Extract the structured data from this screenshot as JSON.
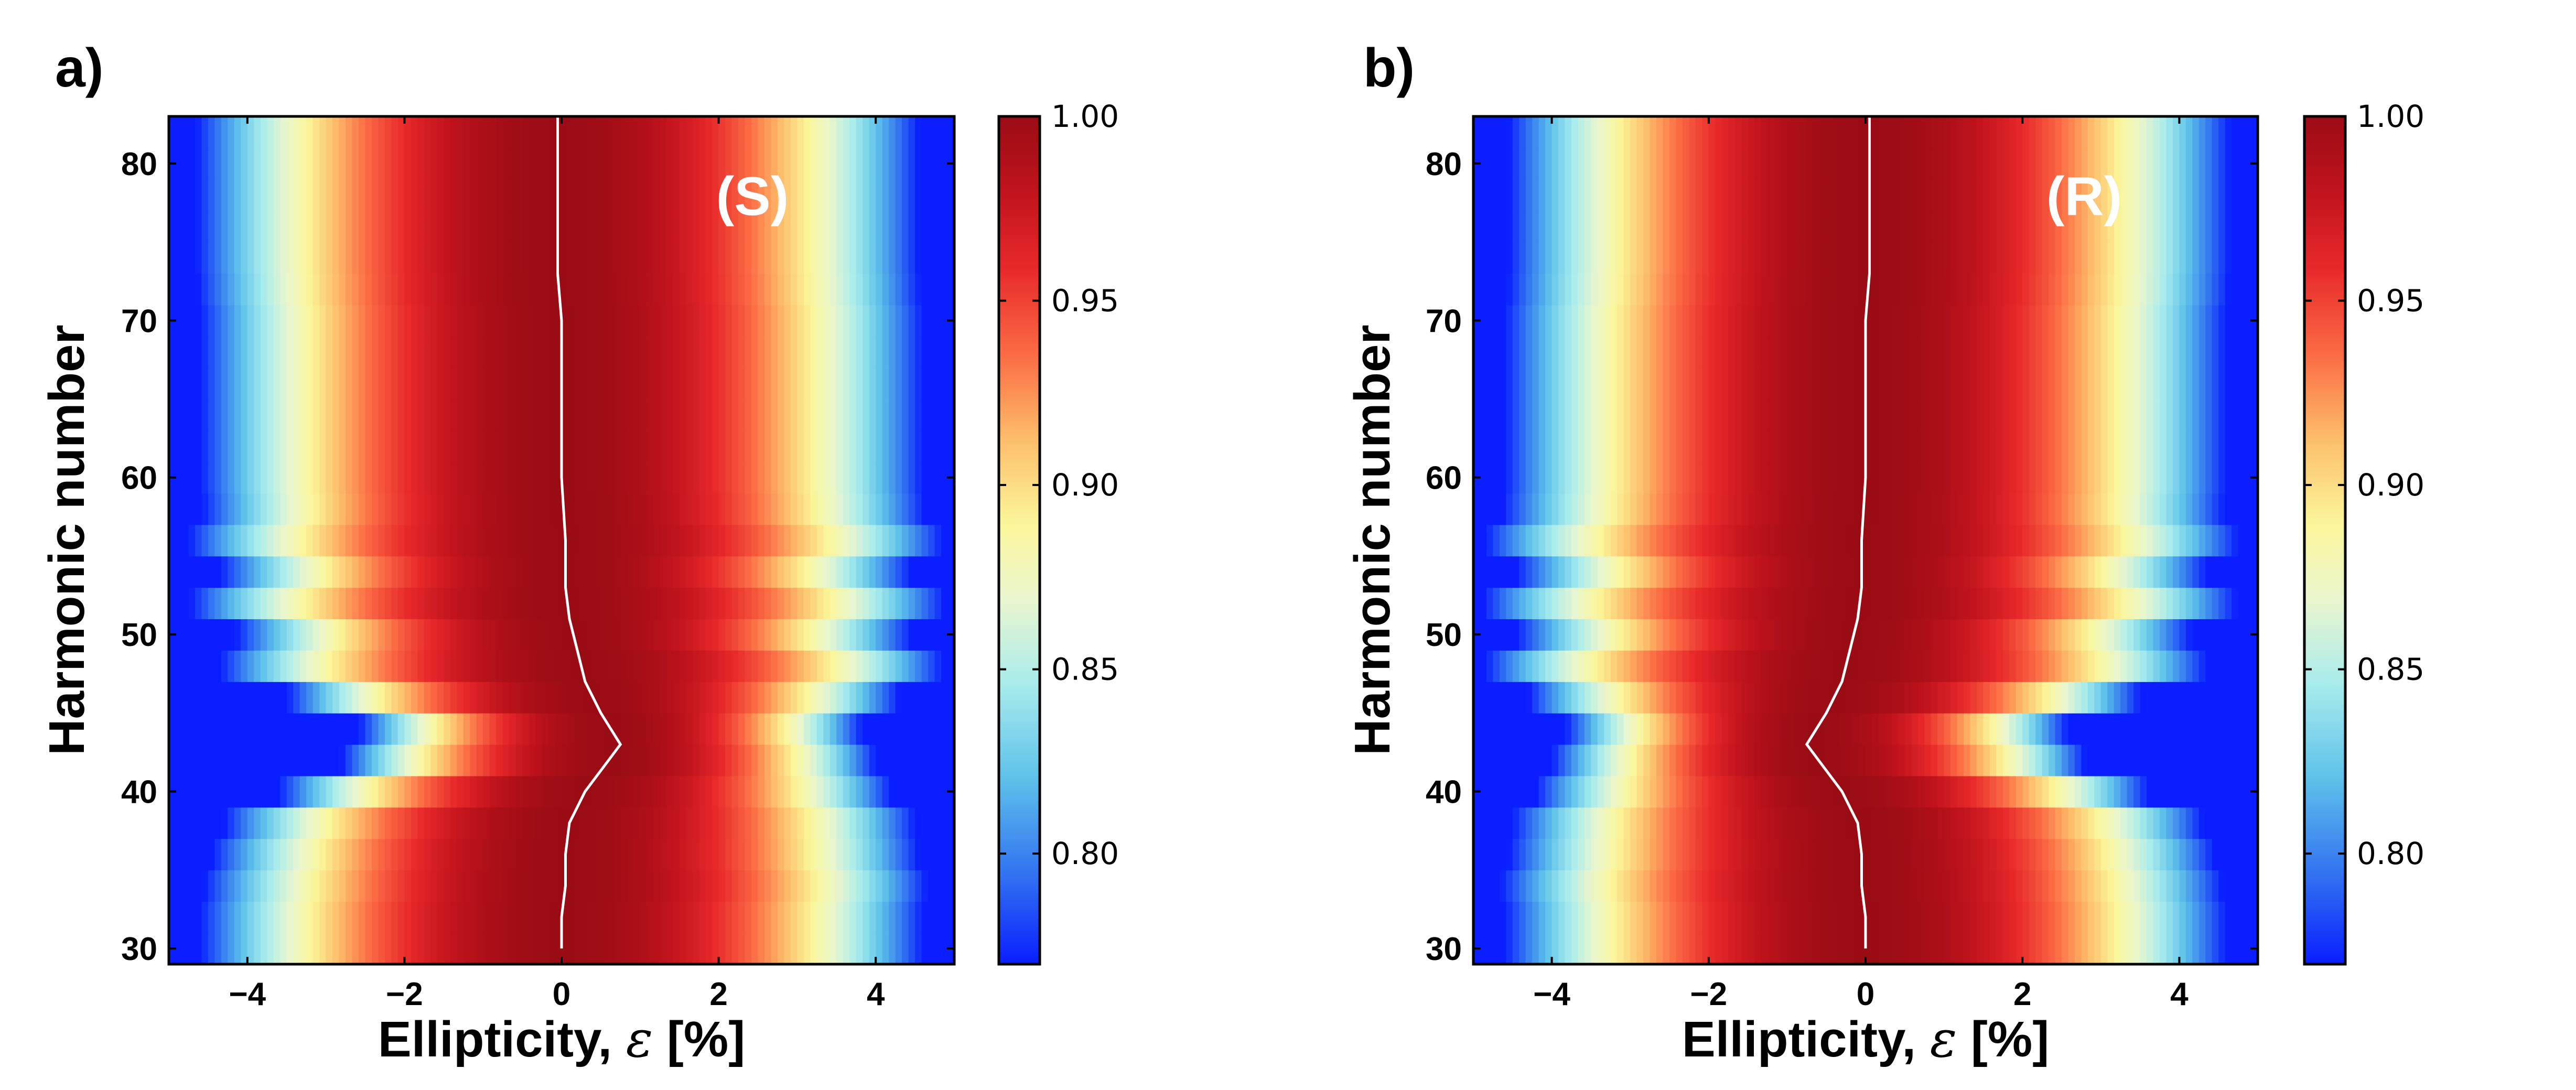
{
  "chart_data": [
    {
      "type": "heatmap",
      "panel_label": "a)",
      "annotation": "(S)",
      "xlabel_text": "Ellipticity, ",
      "xlabel_symbol": "ε",
      "xlabel_unit": " [%]",
      "ylabel": "Harmonic number",
      "xlim": [
        -5,
        5
      ],
      "ylim": [
        29,
        83
      ],
      "xticks": [
        -4,
        -2,
        0,
        2,
        4
      ],
      "xtick_labels": [
        "−4",
        "−2",
        "0",
        "2",
        "4"
      ],
      "yticks": [
        30,
        40,
        50,
        60,
        70,
        80
      ],
      "ytick_labels": [
        "30",
        "40",
        "50",
        "60",
        "70",
        "80"
      ],
      "colorbar": {
        "min": 0.77,
        "max": 1.0,
        "ticks": [
          0.8,
          0.85,
          0.9,
          0.95,
          1.0
        ],
        "tick_labels": [
          "0.80",
          "0.85",
          "0.90",
          "0.95",
          "1.00"
        ],
        "colormap": "jet-like (blue-cyan-yellow-red)"
      },
      "harmonics": [
        30,
        32,
        34,
        36,
        38,
        40,
        42,
        44,
        46,
        48,
        50,
        52,
        54,
        56,
        58,
        60,
        62,
        64,
        66,
        68,
        70,
        72,
        74,
        76,
        78,
        80,
        82
      ],
      "row_halfwidth": [
        4.6,
        4.6,
        4.6,
        4.5,
        4.4,
        3.9,
        3.4,
        3.2,
        3.9,
        4.6,
        4.3,
        4.8,
        4.4,
        4.8,
        4.6,
        4.6,
        4.6,
        4.6,
        4.6,
        4.6,
        4.6,
        4.6,
        4.6,
        4.6,
        4.6,
        4.6,
        4.6
      ],
      "peak_curve": {
        "harmonic": [
          30,
          32,
          34,
          36,
          38,
          40,
          42,
          43,
          45,
          47,
          49,
          51,
          53,
          56,
          60,
          70,
          73,
          83
        ],
        "ellipticity": [
          0.0,
          0.0,
          0.05,
          0.05,
          0.1,
          0.3,
          0.6,
          0.75,
          0.5,
          0.3,
          0.2,
          0.1,
          0.05,
          0.05,
          0.0,
          0.0,
          -0.05,
          -0.05
        ]
      }
    },
    {
      "type": "heatmap",
      "panel_label": "b)",
      "annotation": "(R)",
      "xlabel_text": "Ellipticity, ",
      "xlabel_symbol": "ε",
      "xlabel_unit": " [%]",
      "ylabel": "Harmonic number",
      "xlim": [
        -5,
        5
      ],
      "ylim": [
        29,
        83
      ],
      "xticks": [
        -4,
        -2,
        0,
        2,
        4
      ],
      "xtick_labels": [
        "−4",
        "−2",
        "0",
        "2",
        "4"
      ],
      "yticks": [
        30,
        40,
        50,
        60,
        70,
        80
      ],
      "ytick_labels": [
        "30",
        "40",
        "50",
        "60",
        "70",
        "80"
      ],
      "colorbar": {
        "min": 0.77,
        "max": 1.0,
        "ticks": [
          0.8,
          0.85,
          0.9,
          0.95,
          1.0
        ],
        "tick_labels": [
          "0.80",
          "0.85",
          "0.90",
          "0.95",
          "1.00"
        ],
        "colormap": "jet-like (blue-cyan-yellow-red)"
      },
      "harmonics": [
        30,
        32,
        34,
        36,
        38,
        40,
        42,
        44,
        46,
        48,
        50,
        52,
        54,
        56,
        58,
        60,
        62,
        64,
        66,
        68,
        70,
        72,
        74,
        76,
        78,
        80,
        82
      ],
      "row_halfwidth": [
        4.6,
        4.6,
        4.6,
        4.5,
        4.4,
        3.9,
        3.4,
        3.2,
        3.9,
        4.6,
        4.3,
        4.8,
        4.4,
        4.8,
        4.6,
        4.6,
        4.6,
        4.6,
        4.6,
        4.6,
        4.6,
        4.6,
        4.6,
        4.6,
        4.6,
        4.6,
        4.6
      ],
      "peak_curve": {
        "harmonic": [
          30,
          32,
          34,
          36,
          38,
          40,
          42,
          43,
          45,
          47,
          49,
          51,
          53,
          56,
          60,
          70,
          73,
          83
        ],
        "ellipticity": [
          0.0,
          0.0,
          -0.05,
          -0.05,
          -0.1,
          -0.3,
          -0.6,
          -0.75,
          -0.5,
          -0.3,
          -0.2,
          -0.1,
          -0.05,
          -0.05,
          0.0,
          0.0,
          0.05,
          0.05
        ]
      }
    }
  ]
}
